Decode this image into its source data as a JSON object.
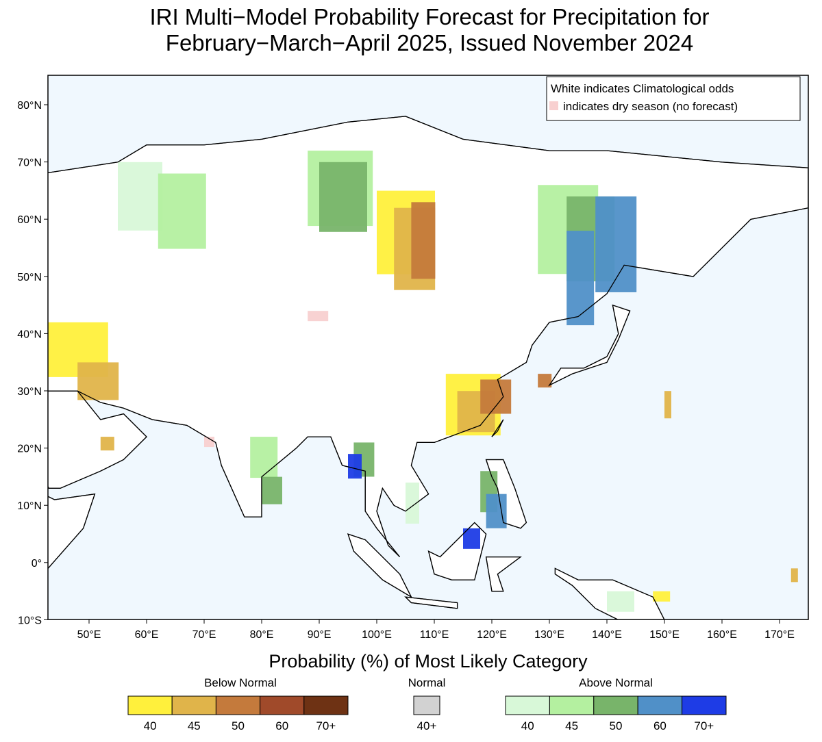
{
  "title": [
    "IRI Multi−Model Probability Forecast for Precipitation for",
    "February−March−April 2025, Issued November 2024"
  ],
  "map": {
    "lat_ticks": [
      "80°N",
      "70°N",
      "60°N",
      "50°N",
      "40°N",
      "30°N",
      "20°N",
      "10°N",
      "0°",
      "10°S"
    ],
    "lon_ticks": [
      "50°E",
      "60°E",
      "70°E",
      "80°E",
      "90°E",
      "100°E",
      "110°E",
      "120°E",
      "130°E",
      "140°E",
      "150°E",
      "160°E",
      "170°E"
    ],
    "notes": [
      "White indicates Climatological odds",
      "indicates dry season (no forecast)"
    ],
    "dry_season_color": "#f8d0d0"
  },
  "legend": {
    "title": "Probability (%) of Most Likely Category",
    "groups": [
      {
        "name": "Below Normal",
        "colors": [
          "#fff03c",
          "#e0b44a",
          "#c47a3c",
          "#a04a2a",
          "#6e3214"
        ],
        "labels": [
          "40",
          "45",
          "50",
          "60",
          "70+"
        ]
      },
      {
        "name": "Normal",
        "colors": [
          "#d2d2d2"
        ],
        "labels": [
          "40+"
        ]
      },
      {
        "name": "Above Normal",
        "colors": [
          "#d8f8d8",
          "#b4f0a0",
          "#78b46a",
          "#5090c8",
          "#1e3ce6"
        ],
        "labels": [
          "40",
          "45",
          "50",
          "60",
          "70+"
        ]
      }
    ]
  }
}
